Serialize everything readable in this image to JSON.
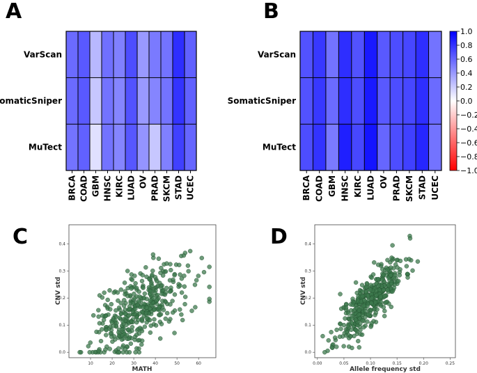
{
  "chart_data": [
    {
      "panel": "A",
      "type": "heatmap",
      "rows": [
        "VarScan",
        "SomaticSniper",
        "MuTect"
      ],
      "columns": [
        "BRCA",
        "COAD",
        "GBM",
        "HNSC",
        "KIRC",
        "LUAD",
        "OV",
        "PRAD",
        "SKCM",
        "STAD",
        "UCEC"
      ],
      "values": [
        [
          0.58,
          0.65,
          0.28,
          0.56,
          0.5,
          0.7,
          0.4,
          0.52,
          0.55,
          0.82,
          0.62
        ],
        [
          0.58,
          0.65,
          0.22,
          0.55,
          0.48,
          0.68,
          0.4,
          0.48,
          0.55,
          0.8,
          0.62
        ],
        [
          0.55,
          0.62,
          0.12,
          0.55,
          0.48,
          0.66,
          0.42,
          0.22,
          0.5,
          0.75,
          0.6
        ]
      ],
      "vmin": -1.0,
      "vmax": 1.0
    },
    {
      "panel": "B",
      "type": "heatmap",
      "rows": [
        "VarScan",
        "SomaticSniper",
        "MuTect"
      ],
      "columns": [
        "BRCA",
        "COAD",
        "GBM",
        "HNSC",
        "KIRC",
        "LUAD",
        "OV",
        "PRAD",
        "SKCM",
        "STAD",
        "UCEC"
      ],
      "values": [
        [
          0.68,
          0.78,
          0.55,
          0.82,
          0.68,
          0.9,
          0.65,
          0.7,
          0.72,
          0.82,
          0.55
        ],
        [
          0.68,
          0.78,
          0.58,
          0.82,
          0.7,
          0.9,
          0.65,
          0.7,
          0.72,
          0.82,
          0.58
        ],
        [
          0.7,
          0.8,
          0.52,
          0.88,
          0.72,
          0.92,
          0.6,
          0.7,
          0.75,
          0.85,
          0.55
        ]
      ],
      "vmin": -1.0,
      "vmax": 1.0,
      "colorbar": {
        "ticks": [
          1.0,
          0.8,
          0.6,
          0.4,
          0.2,
          0.0,
          -0.2,
          -0.4,
          -0.6,
          -0.8,
          -1.0
        ],
        "tick_labels": [
          "1.0",
          "0.8",
          "0.6",
          "0.4",
          "0.2",
          "0.0",
          "−0.2",
          "−0.4",
          "−0.6",
          "−0.8",
          "−1.0"
        ],
        "placement": "right"
      }
    },
    {
      "panel": "C",
      "type": "scatter",
      "xlabel": "MATH",
      "ylabel": "CNV std",
      "xlim": [
        0,
        68
      ],
      "ylim": [
        -0.02,
        0.47
      ],
      "xticks": [
        10,
        20,
        30,
        40,
        50,
        60
      ],
      "xtick_labels": [
        "10",
        "20",
        "30",
        "40",
        "50",
        "60"
      ],
      "yticks": [
        0.0,
        0.1,
        0.2,
        0.3,
        0.4
      ],
      "ytick_labels": [
        "0.0",
        "0.1",
        "0.2",
        "0.3",
        "0.4"
      ],
      "n_points": 420,
      "point_color": "#3e7a4e",
      "relationship": {
        "x_mean": 33,
        "x_sd": 11,
        "x_min": 5,
        "x_max": 65,
        "slope": 0.0042,
        "intercept": 0.02,
        "noise_sd": 0.07,
        "seed": 7
      }
    },
    {
      "panel": "D",
      "type": "scatter",
      "xlabel": "Allele frequency std",
      "ylabel": "CNV std",
      "xlim": [
        -0.005,
        0.26
      ],
      "ylim": [
        -0.02,
        0.47
      ],
      "xticks": [
        0.0,
        0.05,
        0.1,
        0.15,
        0.2,
        0.25
      ],
      "xtick_labels": [
        "0.00",
        "0.05",
        "0.10",
        "0.15",
        "0.20",
        "0.25"
      ],
      "yticks": [
        0.0,
        0.1,
        0.2,
        0.3,
        0.4
      ],
      "ytick_labels": [
        "0.0",
        "0.1",
        "0.2",
        "0.3",
        "0.4"
      ],
      "n_points": 420,
      "point_color": "#3e7a4e",
      "relationship": {
        "x_mean": 0.1,
        "x_sd": 0.032,
        "x_min": 0.01,
        "x_max": 0.24,
        "slope": 1.95,
        "intercept": 0.0,
        "noise_sd": 0.045,
        "seed": 11
      }
    }
  ],
  "panel_labels": {
    "a": "A",
    "b": "B",
    "c": "C",
    "d": "D"
  }
}
